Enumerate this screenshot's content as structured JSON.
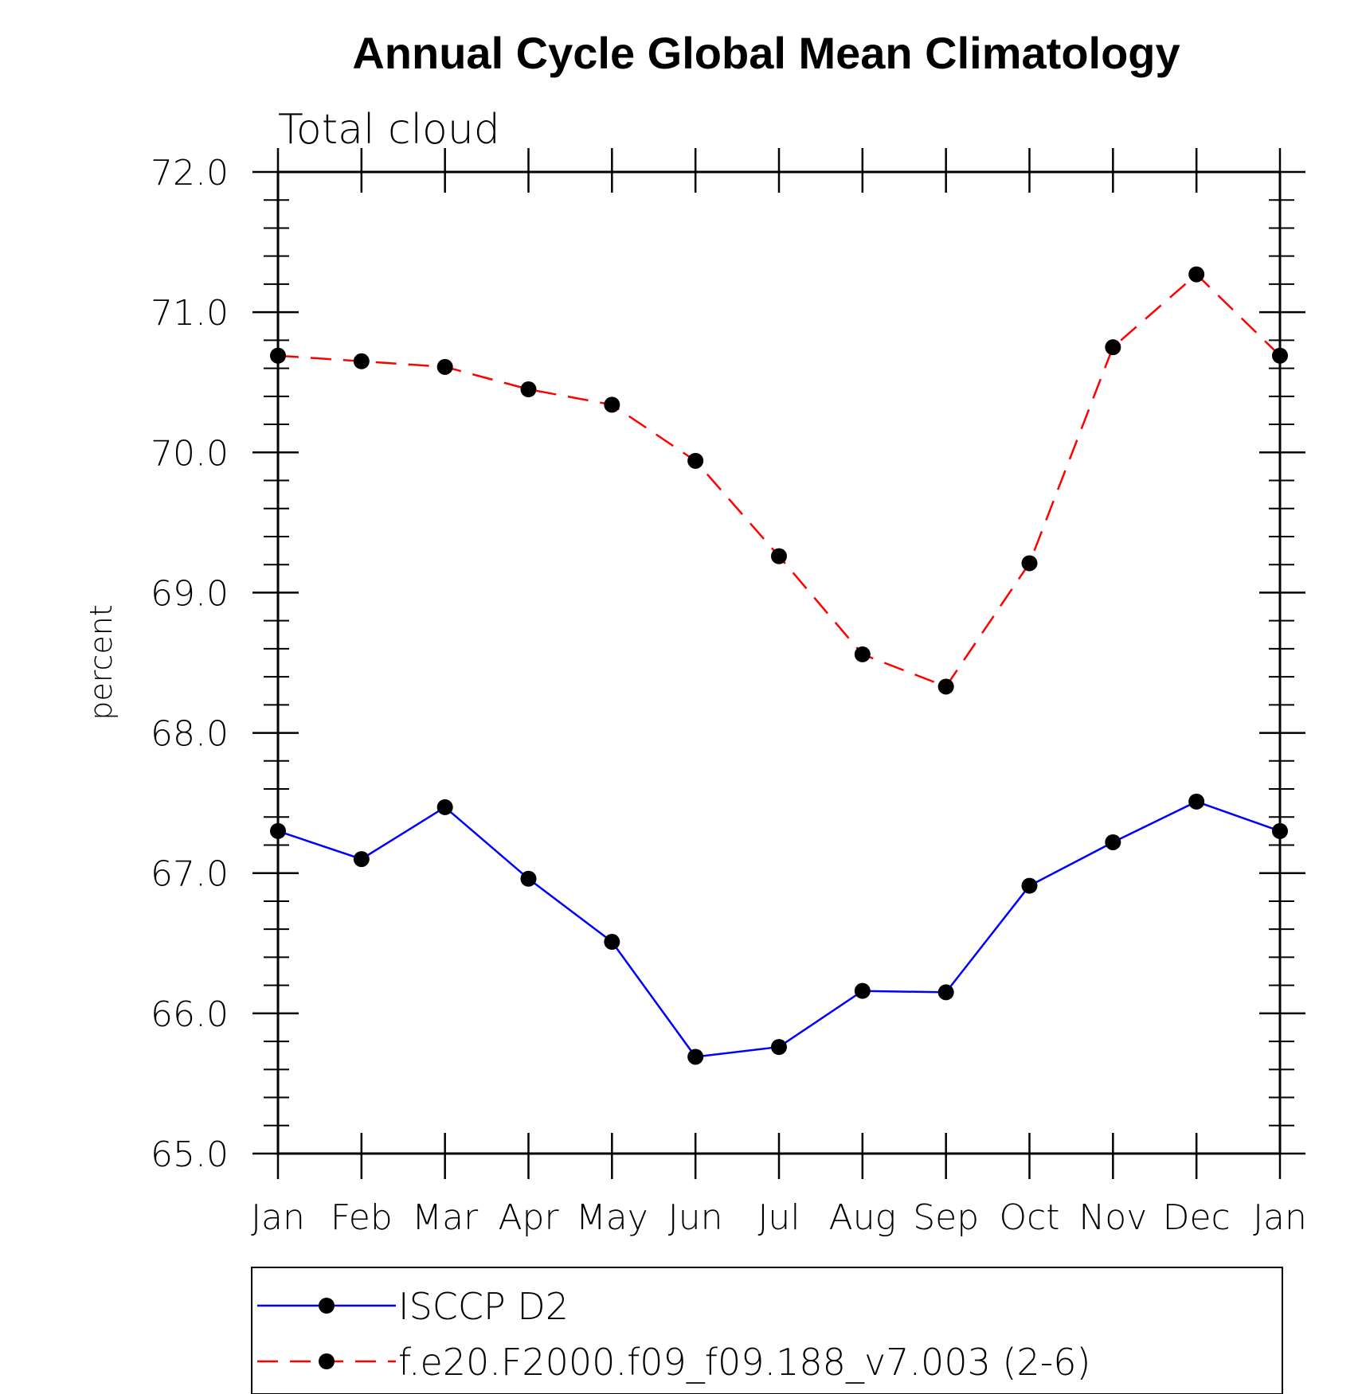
{
  "chart_data": {
    "type": "line",
    "title": "Annual Cycle Global Mean Climatology",
    "subtitle": "Total cloud",
    "ylabel": "percent",
    "xlabel": "",
    "categories": [
      "Jan",
      "Feb",
      "Mar",
      "Apr",
      "May",
      "Jun",
      "Jul",
      "Aug",
      "Sep",
      "Oct",
      "Nov",
      "Dec",
      "Jan"
    ],
    "ylim": [
      65.0,
      72.0
    ],
    "yticks": [
      "65.0",
      "66.0",
      "67.0",
      "68.0",
      "69.0",
      "70.0",
      "71.0",
      "72.0"
    ],
    "series": [
      {
        "name": "ISCCP D2",
        "color": "#0000ff",
        "dash": "solid",
        "marker": "filled-circle",
        "values": [
          67.3,
          67.1,
          67.47,
          66.96,
          66.51,
          65.69,
          65.76,
          66.16,
          66.15,
          66.91,
          67.22,
          67.51,
          67.3
        ]
      },
      {
        "name": "f.e20.F2000.f09_f09.188_v7.003 (2-6)",
        "color": "#ff0000",
        "dash": "dashed",
        "marker": "filled-circle",
        "values": [
          70.69,
          70.65,
          70.61,
          70.45,
          70.34,
          69.94,
          69.26,
          68.56,
          68.33,
          69.21,
          70.75,
          71.27,
          70.69
        ]
      }
    ],
    "legend_position": "bottom",
    "grid": false
  }
}
